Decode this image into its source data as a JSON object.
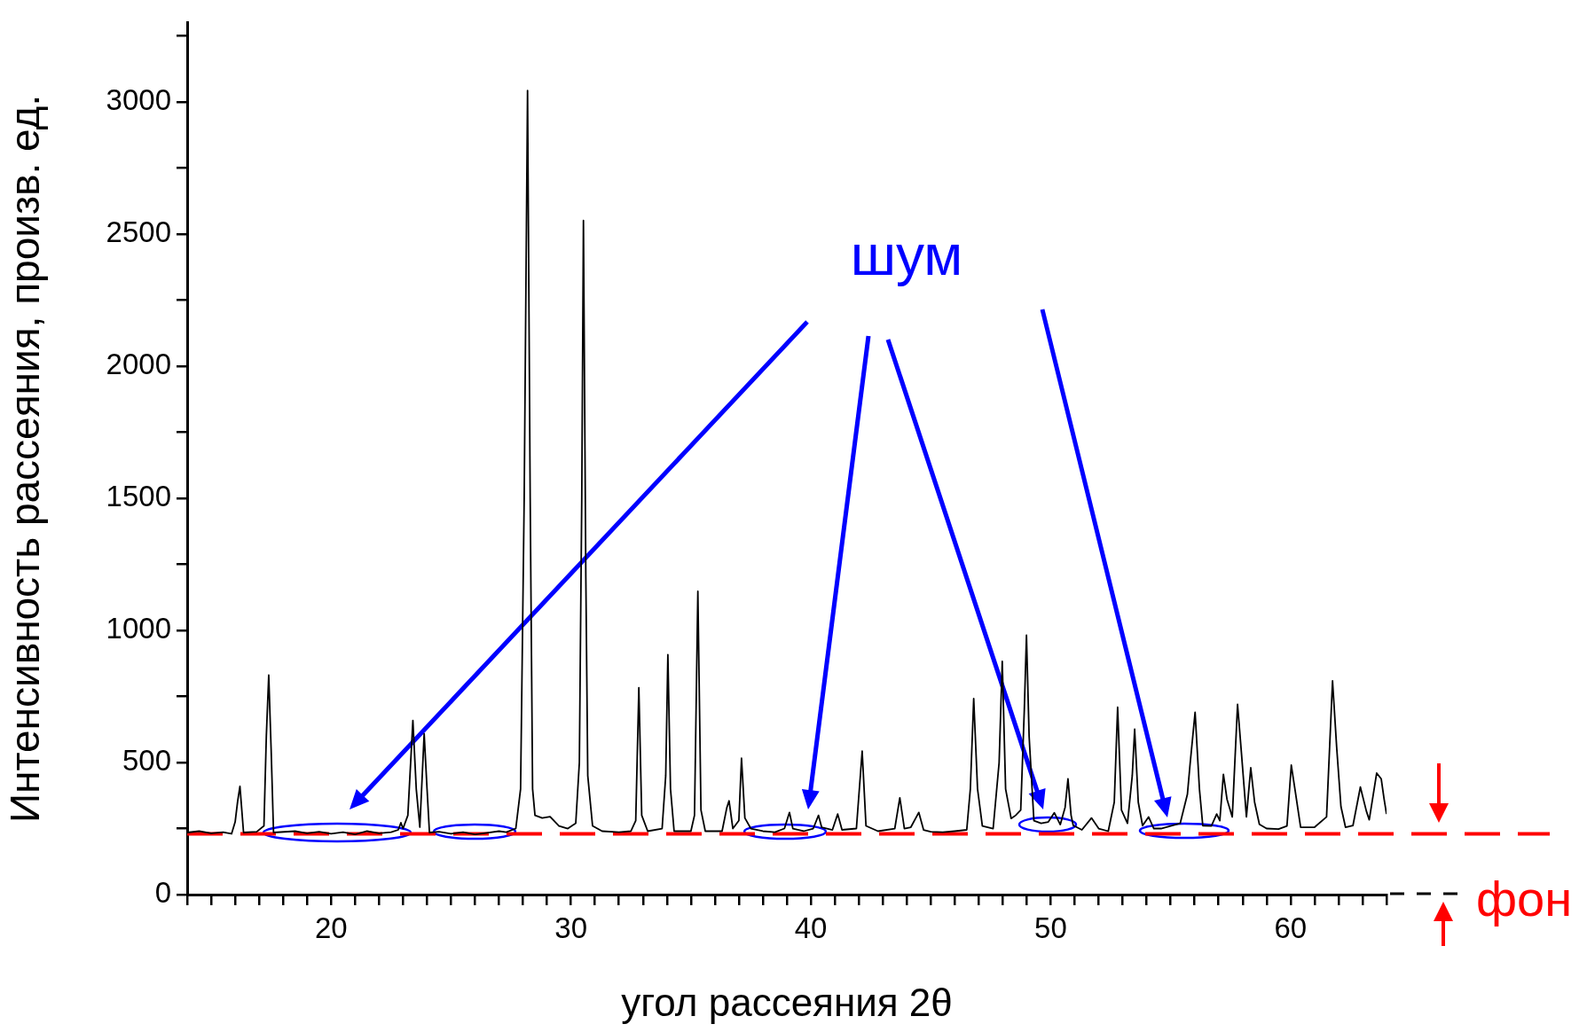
{
  "chart_data": {
    "type": "line",
    "xlabel": "угол рассеяния 2θ",
    "ylabel": "Интенсивность рассеяния, произв. ед.",
    "xlim": [
      14,
      64
    ],
    "ylim": [
      0,
      3300
    ],
    "xticks": [
      {
        "value": 14,
        "label": null
      },
      {
        "value": 15,
        "label": null
      },
      {
        "value": 16,
        "label": null
      },
      {
        "value": 17,
        "label": null
      },
      {
        "value": 18,
        "label": null
      },
      {
        "value": 19,
        "label": null
      },
      20,
      {
        "value": 21,
        "label": null
      },
      {
        "value": 22,
        "label": null
      },
      {
        "value": 23,
        "label": null
      },
      {
        "value": 24,
        "label": null
      },
      {
        "value": 25,
        "label": null
      },
      {
        "value": 26,
        "label": null
      },
      {
        "value": 27,
        "label": null
      },
      {
        "value": 28,
        "label": null
      },
      {
        "value": 29,
        "label": null
      },
      30,
      {
        "value": 31,
        "label": null
      },
      {
        "value": 32,
        "label": null
      },
      {
        "value": 33,
        "label": null
      },
      {
        "value": 34,
        "label": null
      },
      {
        "value": 35,
        "label": null
      },
      {
        "value": 36,
        "label": null
      },
      {
        "value": 37,
        "label": null
      },
      {
        "value": 38,
        "label": null
      },
      {
        "value": 39,
        "label": null
      },
      40,
      {
        "value": 41,
        "label": null
      },
      {
        "value": 42,
        "label": null
      },
      {
        "value": 43,
        "label": null
      },
      {
        "value": 44,
        "label": null
      },
      {
        "value": 45,
        "label": null
      },
      {
        "value": 46,
        "label": null
      },
      {
        "value": 47,
        "label": null
      },
      {
        "value": 48,
        "label": null
      },
      {
        "value": 49,
        "label": null
      },
      50,
      {
        "value": 51,
        "label": null
      },
      {
        "value": 52,
        "label": null
      },
      {
        "value": 53,
        "label": null
      },
      {
        "value": 54,
        "label": null
      },
      {
        "value": 55,
        "label": null
      },
      {
        "value": 56,
        "label": null
      },
      {
        "value": 57,
        "label": null
      },
      {
        "value": 58,
        "label": null
      },
      {
        "value": 59,
        "label": null
      },
      60,
      {
        "value": 61,
        "label": null
      },
      {
        "value": 62,
        "label": null
      },
      {
        "value": 63,
        "label": null
      },
      {
        "value": 64,
        "label": null
      }
    ],
    "yticks": [
      0,
      {
        "value": 250,
        "label": null
      },
      500,
      {
        "value": 750,
        "label": null
      },
      1000,
      {
        "value": 1250,
        "label": null
      },
      1500,
      {
        "value": 1750,
        "label": null
      },
      2000,
      {
        "value": 2250,
        "label": null
      },
      2500,
      {
        "value": 2750,
        "label": null
      },
      3000,
      {
        "value": 3250,
        "label": null
      }
    ],
    "grid": false,
    "marker": "none",
    "line_style": "solid",
    "annotations": [
      "шум"
    ],
    "ref_lines": [
      {
        "axis": "y",
        "value": 230,
        "label": "фон",
        "color": "#ff0000",
        "line_style": "dashed"
      }
    ],
    "series": [
      {
        "color": "#000000",
        "x": [
          14.0,
          14.5,
          15.0,
          15.5,
          15.85,
          16.0,
          16.1,
          16.2,
          16.35,
          16.9,
          17.2,
          17.3,
          17.4,
          17.5,
          17.6,
          18.5,
          19.0,
          19.5,
          20.0,
          20.5,
          21.0,
          21.5,
          22.0,
          22.5,
          22.8,
          22.91,
          23.0,
          23.2,
          23.41,
          23.55,
          23.7,
          23.88,
          24.0,
          24.1,
          24.5,
          25.0,
          25.5,
          26.0,
          26.5,
          27.0,
          27.3,
          27.7,
          27.9,
          28.05,
          28.19,
          28.3,
          28.4,
          28.5,
          28.8,
          29.13,
          29.5,
          29.87,
          30.2,
          30.35,
          30.45,
          30.52,
          30.62,
          30.7,
          30.9,
          31.3,
          32.0,
          32.5,
          32.7,
          32.83,
          32.95,
          33.2,
          33.8,
          33.95,
          34.04,
          34.15,
          34.3,
          35.0,
          35.15,
          35.29,
          35.42,
          35.6,
          36.3,
          36.5,
          36.59,
          36.75,
          37.0,
          37.11,
          37.25,
          37.5,
          38.0,
          38.5,
          38.9,
          39.11,
          39.25,
          39.7,
          40.1,
          40.32,
          40.45,
          40.9,
          41.12,
          41.3,
          41.9,
          42.14,
          42.3,
          42.8,
          43.5,
          43.71,
          43.9,
          44.17,
          44.5,
          44.7,
          45.0,
          45.5,
          46.0,
          46.5,
          46.65,
          46.79,
          46.95,
          47.15,
          47.6,
          47.85,
          47.98,
          48.12,
          48.35,
          48.54,
          48.75,
          48.9,
          48.99,
          49.1,
          49.3,
          49.6,
          49.9,
          50.15,
          50.4,
          50.6,
          50.72,
          50.85,
          50.94,
          51.3,
          51.7,
          52.0,
          52.4,
          52.65,
          52.79,
          52.95,
          53.2,
          53.4,
          53.5,
          53.65,
          53.83,
          54.08,
          54.3,
          54.6,
          55.0,
          55.4,
          55.7,
          55.81,
          56.02,
          56.2,
          56.34,
          56.7,
          56.92,
          57.05,
          57.2,
          57.35,
          57.57,
          57.79,
          57.95,
          58.16,
          58.34,
          58.5,
          58.7,
          59.0,
          59.5,
          59.85,
          60.03,
          60.2,
          60.42,
          61.0,
          61.5,
          61.75,
          61.92,
          62.1,
          62.29,
          62.6,
          62.91,
          63.16,
          63.28,
          63.59,
          63.78,
          63.9,
          64.0
        ],
        "values": [
          235,
          240,
          232,
          236,
          230,
          275,
          350,
          410,
          235,
          238,
          260,
          600,
          831,
          550,
          235,
          240,
          232,
          238,
          230,
          236,
          228,
          240,
          232,
          236,
          245,
          272,
          250,
          300,
          659,
          400,
          255,
          609,
          400,
          235,
          238,
          230,
          236,
          228,
          234,
          240,
          236,
          250,
          400,
          1500,
          3044,
          1500,
          400,
          300,
          290,
          295,
          260,
          250,
          270,
          500,
          1500,
          2552,
          1200,
          450,
          260,
          240,
          236,
          240,
          280,
          783,
          300,
          240,
          250,
          450,
          908,
          400,
          240,
          240,
          300,
          1148,
          320,
          240,
          240,
          330,
          355,
          250,
          280,
          516,
          290,
          250,
          240,
          236,
          250,
          311,
          250,
          240,
          250,
          300,
          255,
          245,
          305,
          245,
          250,
          543,
          260,
          240,
          250,
          366,
          250,
          255,
          311,
          245,
          238,
          236,
          240,
          245,
          400,
          742,
          400,
          260,
          250,
          500,
          883,
          400,
          288,
          300,
          320,
          700,
          982,
          600,
          280,
          270,
          275,
          310,
          265,
          330,
          438,
          300,
          262,
          245,
          290,
          250,
          240,
          350,
          709,
          320,
          270,
          450,
          626,
          350,
          261,
          294,
          250,
          250,
          260,
          270,
          380,
          493,
          690,
          400,
          261,
          260,
          305,
          280,
          455,
          361,
          294,
          720,
          538,
          294,
          480,
          350,
          266,
          250,
          248,
          260,
          490,
          388,
          255,
          255,
          294,
          809,
          560,
          333,
          255,
          261,
          407,
          316,
          283,
          460,
          438,
          361,
          305
        ]
      }
    ]
  }
}
